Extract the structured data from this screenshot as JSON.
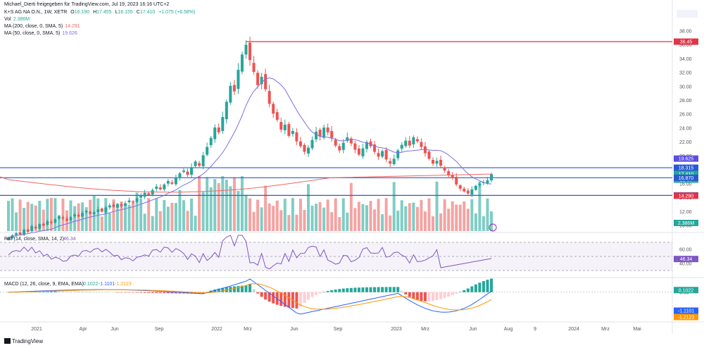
{
  "header": {
    "attribution": "Michael_Dierti freigegeben für TradingView.com, Jul 19, 2023 16:16 UTC+2",
    "symbol": "K+S AG NA O.N., 1W, XETR",
    "open_label": "O",
    "open_value": "16.190",
    "high_label": "H",
    "high_value": "17.455",
    "low_label": "L",
    "low_value": "16.155",
    "close_label": "C",
    "close_value": "17.410",
    "change": "+1.075 (+6.58%)",
    "vol_label": "Vol",
    "vol_value": "2.386M",
    "ma200_label": "MA (200, close, 0, SMA, 5)",
    "ma200_value": "14.291",
    "ma50_label": "MA (50, close, 0, SMA, 5)",
    "ma50_value": "19.626"
  },
  "footer": {
    "brand": "TradingView"
  },
  "colors": {
    "up": "#26a69a",
    "down": "#ef5350",
    "vol_up": "#7fcdc4",
    "vol_down": "#f4a3a2",
    "ma200": "#f06666",
    "ma50": "#7b6fe8",
    "hline": "#2b59d1",
    "resistance": "#e03447",
    "rsi": "#7e57c2",
    "macd": "#2962ff",
    "signal": "#ff9800",
    "text": "#131722"
  },
  "chart_data": [
    {
      "type": "candlestick",
      "title": "K+S AG NA O.N., 1W, XETR",
      "x_tick_labels": [
        "2021",
        "Apr",
        "Jun",
        "Sep",
        "2022",
        "Mrz",
        "Jun",
        "Sep",
        "2023",
        "Mrz",
        "Jun",
        "Aug",
        "9",
        "2024",
        "Mrz",
        "Mai"
      ],
      "y_tick_labels": [
        "38.00",
        "36.00",
        "34.00",
        "32.00",
        "30.00",
        "28.00",
        "26.00",
        "24.00",
        "22.00",
        "20.00",
        "18.00",
        "16.00",
        "14.00",
        "12.00",
        "10.00"
      ],
      "ylim": [
        9.2,
        39.4
      ],
      "price_labels": [
        {
          "value": 36.45,
          "label": "36.45",
          "kind": "resistance"
        },
        {
          "value": 19.625,
          "label": "19.625",
          "kind": "ma50"
        },
        {
          "value": 18.315,
          "label": "18.315",
          "kind": "hline"
        },
        {
          "value": 17.41,
          "label": "17.410",
          "sublabel": "2d 3h",
          "kind": "last"
        },
        {
          "value": 16.87,
          "label": "16.870",
          "kind": "hline"
        },
        {
          "value": 14.33,
          "label": "14.330",
          "kind": "hline"
        },
        {
          "value": 14.29,
          "label": "14.290",
          "kind": "ma200"
        }
      ],
      "horizontal_lines": [
        18.315,
        16.87,
        14.33
      ],
      "resistance_line": 36.45,
      "ma50_label": "MA (50, close, 0, SMA, 5)",
      "ma200_label": "MA (200, close, 0, SMA, 5)",
      "volume_label": "2.386M",
      "candles_weekly_close": [
        8.2,
        8.6,
        8.9,
        8.7,
        9.4,
        9.1,
        9.9,
        9.6,
        10.2,
        10.0,
        10.6,
        10.4,
        10.9,
        11.3,
        11.0,
        10.7,
        11.2,
        11.6,
        11.3,
        11.8,
        12.1,
        11.7,
        11.9,
        12.3,
        12.0,
        12.6,
        12.9,
        12.7,
        13.1,
        12.8,
        13.2,
        13.6,
        13.4,
        13.9,
        14.3,
        14.7,
        14.4,
        15.1,
        15.6,
        15.2,
        15.9,
        16.4,
        16.0,
        16.8,
        17.5,
        17.9,
        17.3,
        18.4,
        19.2,
        18.6,
        20.1,
        21.3,
        22.6,
        24.1,
        23.4,
        25.6,
        27.8,
        30.1,
        29.3,
        32.4,
        34.6,
        36.0,
        33.8,
        32.1,
        30.2,
        31.4,
        29.6,
        27.5,
        26.1,
        25.2,
        23.8,
        24.5,
        22.9,
        23.6,
        22.1,
        21.4,
        20.6,
        21.2,
        22.3,
        23.5,
        22.8,
        24.1,
        23.4,
        22.6,
        21.5,
        20.8,
        21.9,
        22.7,
        21.8,
        20.9,
        20.2,
        21.1,
        22.0,
        21.4,
        20.6,
        19.9,
        20.7,
        19.5,
        18.9,
        19.6,
        20.8,
        21.6,
        22.2,
        21.5,
        22.7,
        22.1,
        21.3,
        20.4,
        19.6,
        18.9,
        19.3,
        18.6,
        17.9,
        17.2,
        16.8,
        15.9,
        15.3,
        14.9,
        14.6,
        15.2,
        15.7,
        16.0,
        16.2,
        16.5,
        17.41
      ]
    },
    {
      "type": "line",
      "title": "RSI (14, close, SMA, 14, 2)",
      "value_label": "46.34",
      "y_tick_labels": [
        "60.00",
        "40.00"
      ],
      "ylim": [
        22,
        82
      ],
      "band": [
        30,
        70
      ],
      "midline": 50
    },
    {
      "type": "bar",
      "title": "MACD (12, 26, close, 9, EMA, EMA)",
      "series": [
        {
          "name": "MACD",
          "last": -1.1101,
          "label": "-1.1101"
        },
        {
          "name": "Signal",
          "last": -1.2123,
          "label": "-1.2123"
        },
        {
          "name": "Histogram",
          "last": 0.1022,
          "label": "0.1022"
        }
      ],
      "y_tick_labels": [
        "0.00",
        "-5.00"
      ],
      "ylim": [
        -7.5,
        3.5
      ]
    }
  ]
}
